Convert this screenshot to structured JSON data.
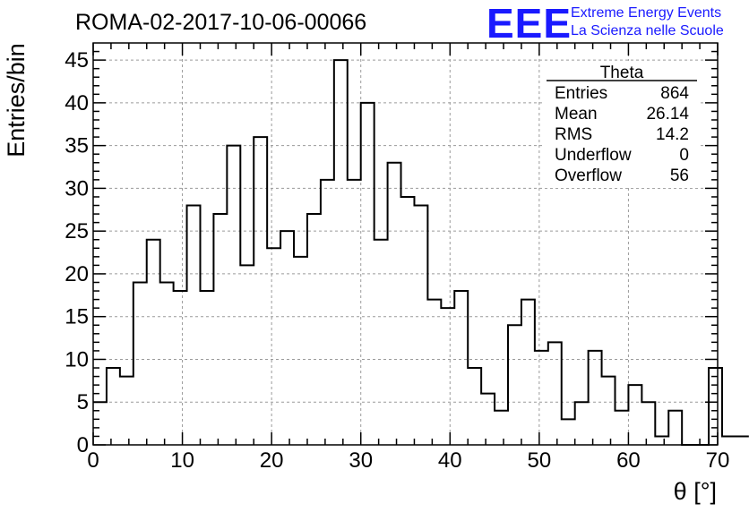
{
  "chart_data": {
    "type": "bar",
    "title": "ROMA-02-2017-10-06-00066",
    "xlabel": "θ [°]",
    "ylabel": "Entries/bin",
    "xlim": [
      0,
      70
    ],
    "ylim": [
      0,
      47
    ],
    "grid": true,
    "x_ticks": [
      "0",
      "10",
      "20",
      "30",
      "40",
      "50",
      "60",
      "70"
    ],
    "y_ticks": [
      "0",
      "5",
      "10",
      "15",
      "20",
      "25",
      "30",
      "35",
      "40",
      "45"
    ],
    "bin_width": 1.5,
    "bin_edges_start": 0,
    "values": [
      5,
      9,
      8,
      19,
      24,
      19,
      18,
      28,
      18,
      27,
      35,
      21,
      36,
      23,
      25,
      22,
      27,
      31,
      45,
      31,
      40,
      24,
      33,
      29,
      28,
      17,
      16,
      18,
      9,
      6,
      4,
      14,
      17,
      11,
      12,
      3,
      5,
      11,
      8,
      4,
      7,
      5,
      1,
      4,
      0,
      0,
      9,
      1,
      1
    ],
    "stats_box": {
      "title": "Theta",
      "rows": [
        {
          "label": "Entries",
          "value": "864"
        },
        {
          "label": "Mean",
          "value": "26.14"
        },
        {
          "label": "RMS",
          "value": "14.2"
        },
        {
          "label": "Underflow",
          "value": "0"
        },
        {
          "label": "Overflow",
          "value": "56"
        }
      ]
    }
  },
  "brand": {
    "logo": "EEE",
    "line1": "Extreme Energy Events",
    "line2": "La Scienza nelle Scuole"
  },
  "colors": {
    "brand": "#1a1aff",
    "line": "#000000",
    "grid": "#9a9a9a"
  }
}
